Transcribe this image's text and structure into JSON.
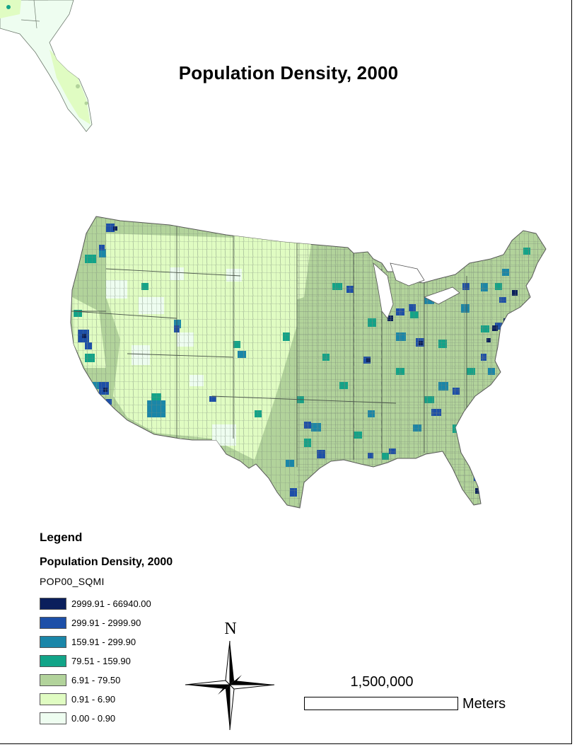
{
  "title": "Population Density, 2000",
  "legend": {
    "heading": "Legend",
    "layer_name": "Population Density, 2000",
    "field": "POP00_SQMI",
    "classes": [
      {
        "label": "2999.91 - 66940.00",
        "color": "#0a1f5c"
      },
      {
        "label": "299.91 - 2999.90",
        "color": "#1d4fa8"
      },
      {
        "label": "159.91 - 299.90",
        "color": "#1a86a8"
      },
      {
        "label": "79.51 - 159.90",
        "color": "#12a488"
      },
      {
        "label": "6.91 - 79.50",
        "color": "#b2d39b"
      },
      {
        "label": "0.91 - 6.90",
        "color": "#e0fcc2"
      },
      {
        "label": "0.00 - 0.90",
        "color": "#eefdf0"
      }
    ]
  },
  "north_arrow": {
    "letter": "N"
  },
  "scale_bar": {
    "value": "1,500,000",
    "unit": "Meters"
  },
  "colors": {
    "county_outline": "#6e7a6e",
    "frame": "#000000"
  }
}
